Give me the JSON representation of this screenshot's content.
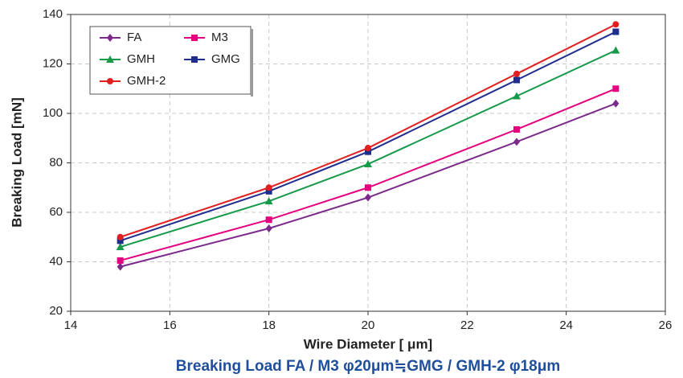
{
  "chart_data": {
    "type": "line",
    "y_label": "Breaking Load [mN]",
    "x_label": "Wire Diameter [ μm]",
    "subtitle": "Breaking Load FA / M3 φ20μm≒GMG / GMH-2  φ18μm",
    "x": [
      15,
      18,
      20,
      23,
      25
    ],
    "xlim": [
      14,
      26
    ],
    "xticks": [
      14,
      16,
      18,
      20,
      22,
      24,
      26
    ],
    "ylim": [
      20,
      140
    ],
    "yticks": [
      20,
      40,
      60,
      80,
      100,
      120,
      140
    ],
    "grid": true,
    "series": [
      {
        "name": "FA",
        "color": "#7b2a8c",
        "marker": "diamond",
        "values": [
          38,
          53.5,
          66,
          88.5,
          104
        ]
      },
      {
        "name": "M3",
        "color": "#e4007f",
        "marker": "square",
        "values": [
          40.5,
          57,
          70,
          93.5,
          110
        ]
      },
      {
        "name": "GMH",
        "color": "#17994a",
        "marker": "triangle",
        "values": [
          46,
          64.5,
          79.5,
          107,
          125.5
        ]
      },
      {
        "name": "GMG",
        "color": "#1f2e8c",
        "marker": "square",
        "values": [
          48.5,
          68.5,
          84.5,
          113.5,
          133
        ]
      },
      {
        "name": "GMH-2",
        "color": "#e02020",
        "marker": "circle",
        "values": [
          50,
          70,
          86,
          116,
          136
        ]
      }
    ]
  }
}
